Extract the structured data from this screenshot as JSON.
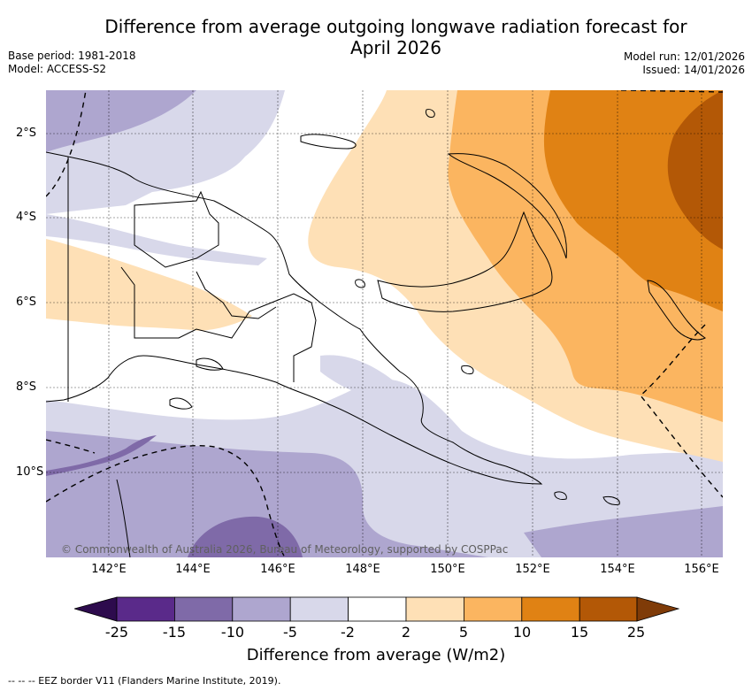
{
  "title_line1": "Difference from average outgoing longwave radiation forecast for",
  "title_line2": "April 2026",
  "base_period": "Base period: 1981-2018",
  "model": "Model: ACCESS-S2",
  "model_run": "Model run: 12/01/2026",
  "issued": "Issued: 14/01/2026",
  "copyright": "© Commonwealth of Australia 2026, Bureau of Meteorology, supported by COSPPac",
  "x_ticks": [
    "142°E",
    "144°E",
    "146°E",
    "148°E",
    "150°E",
    "152°E",
    "154°E",
    "156°E"
  ],
  "y_ticks": [
    "2°S",
    "4°S",
    "6°S",
    "8°S",
    "10°S"
  ],
  "colorbar": {
    "labels": [
      "-25",
      "-15",
      "-10",
      "-5",
      "-2",
      "2",
      "5",
      "10",
      "15",
      "25"
    ],
    "colors": [
      "#2d0b4d",
      "#5a2a8a",
      "#7f6aa8",
      "#aea6cf",
      "#d8d8ea",
      "#ffffff",
      "#fee0b6",
      "#fbb560",
      "#e08214",
      "#b35806",
      "#7f3b08"
    ],
    "title": "Difference from average (W/m2)"
  },
  "legend_text": "--  --  -- EEZ border V11 (Flanders Marine Institute, 2019)."
}
